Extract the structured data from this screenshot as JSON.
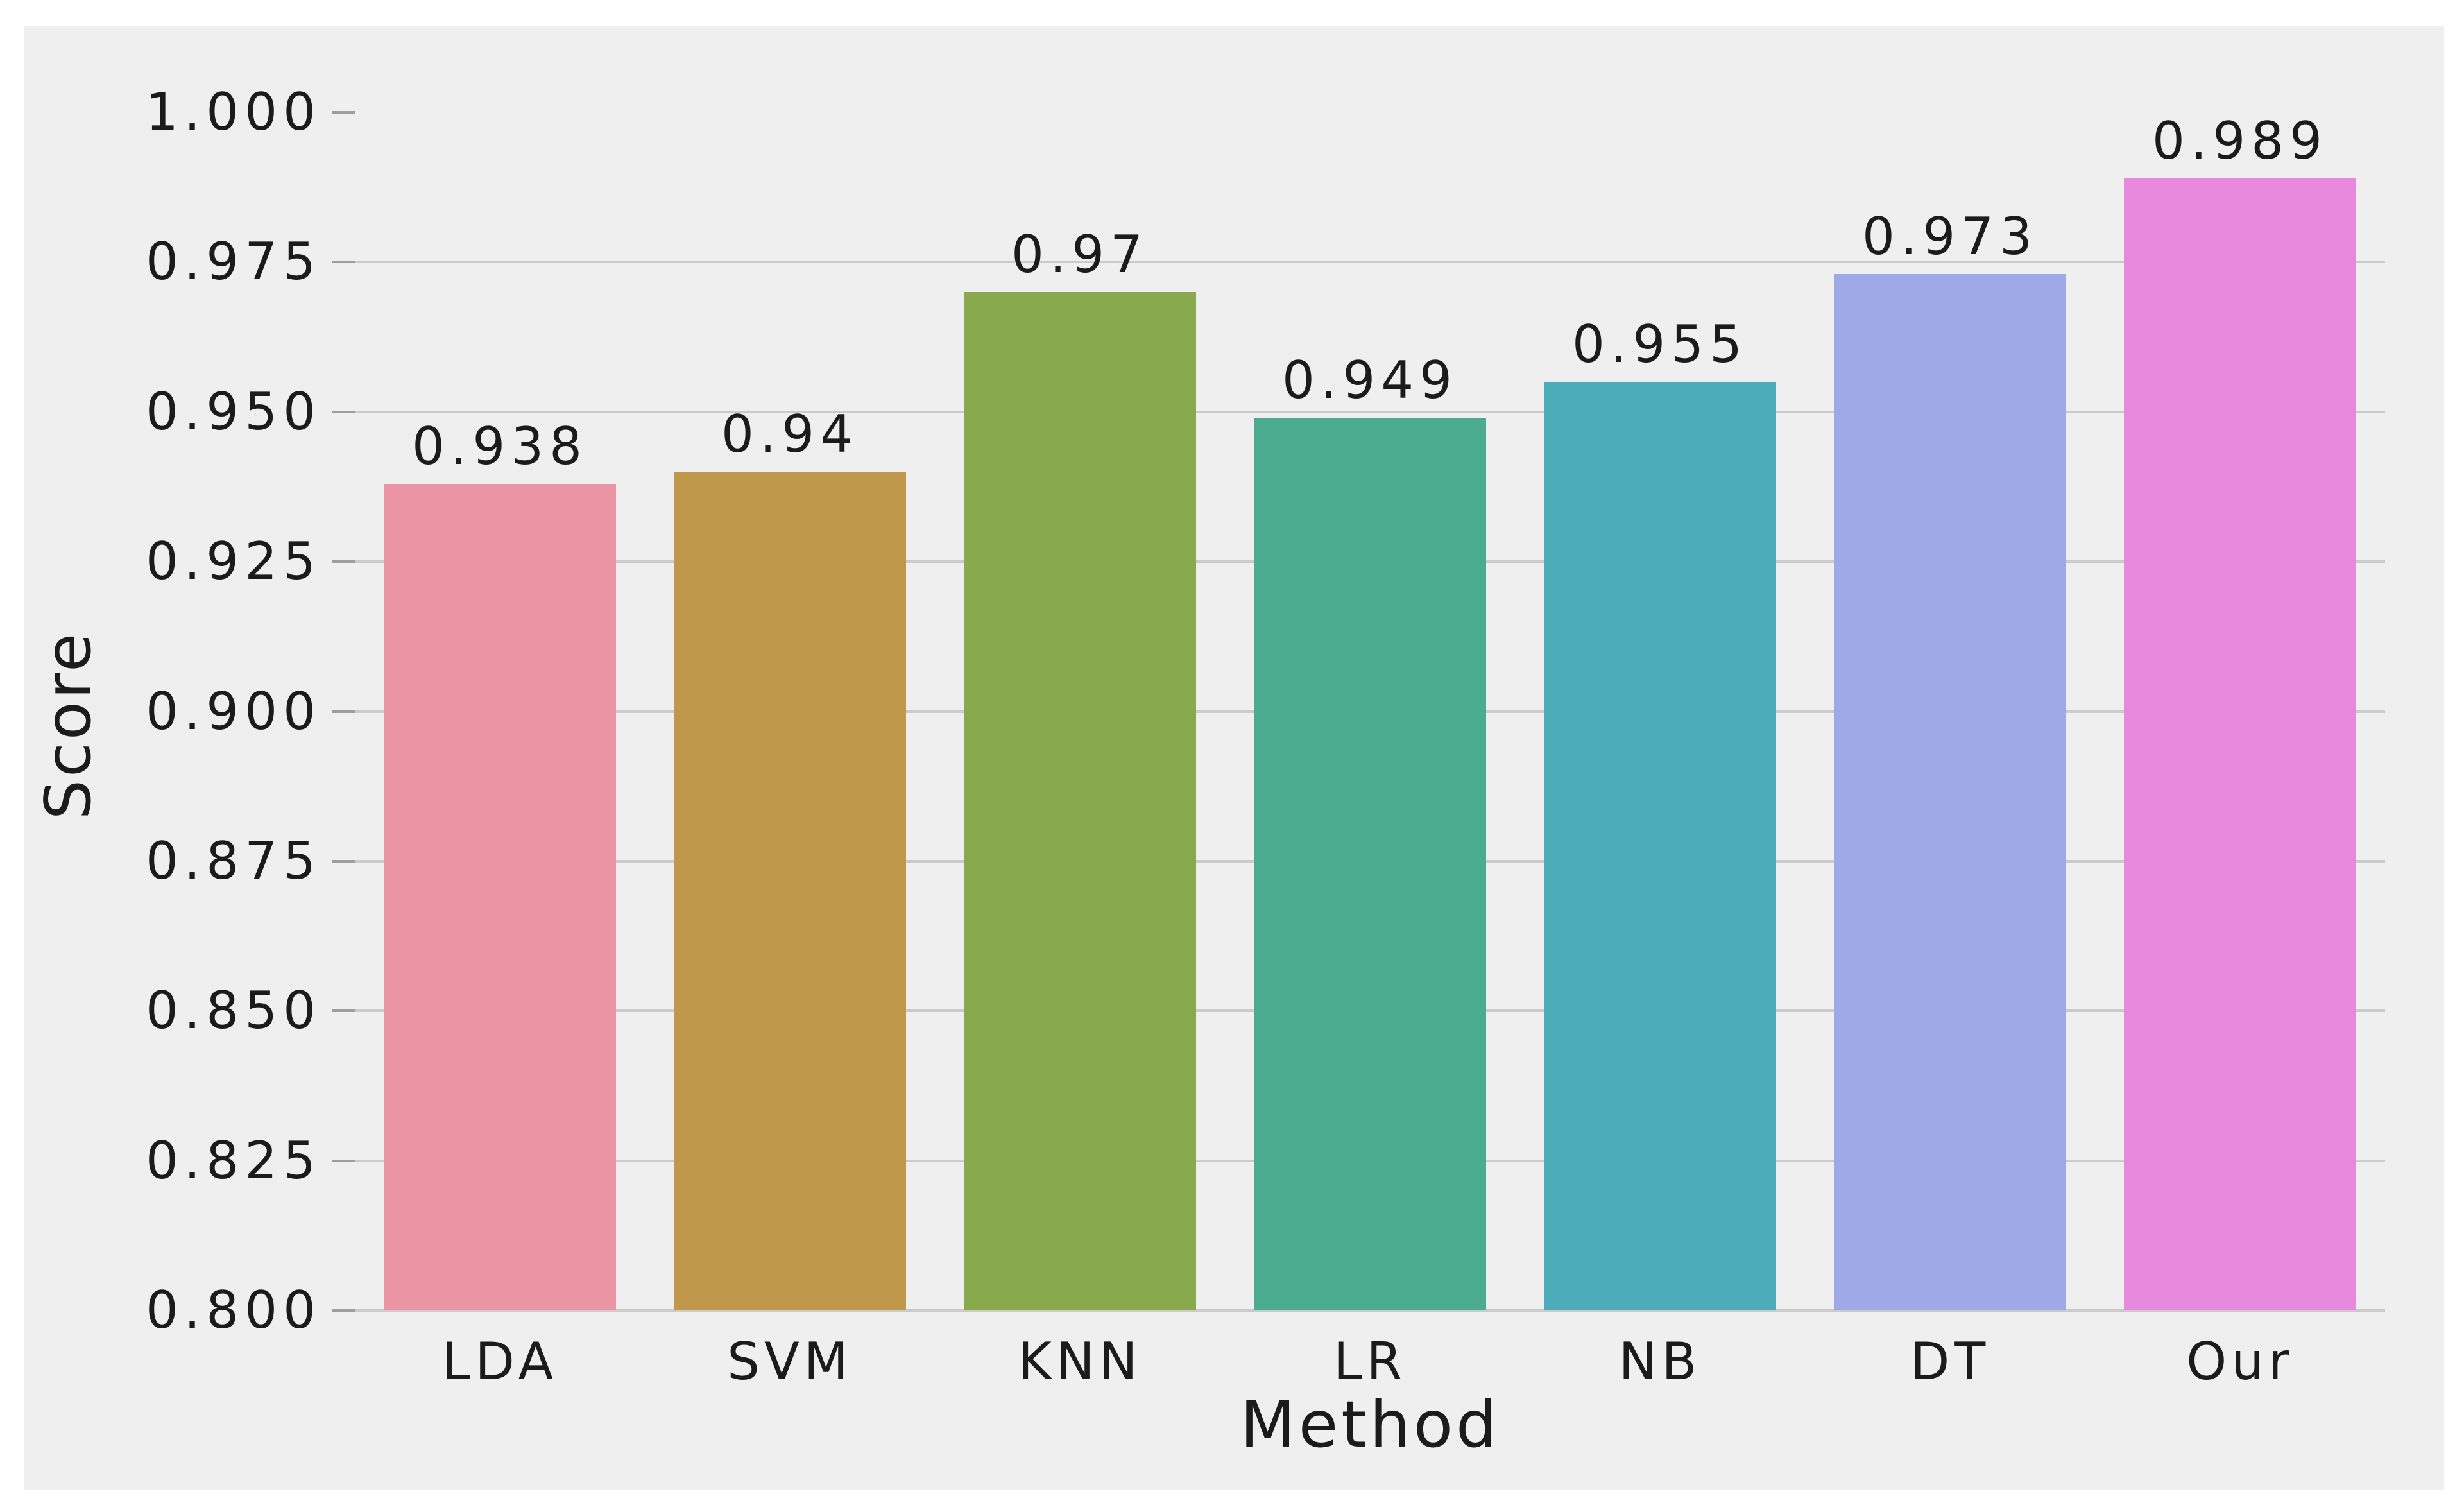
{
  "chart_data": {
    "type": "bar",
    "title": "",
    "xlabel": "Method",
    "ylabel": "Score",
    "categories": [
      "LDA",
      "SVM",
      "KNN",
      "LR",
      "NB",
      "DT",
      "Our"
    ],
    "values": [
      0.938,
      0.94,
      0.97,
      0.949,
      0.955,
      0.973,
      0.989
    ],
    "value_labels": [
      "0.938",
      "0.94",
      "0.97",
      "0.949",
      "0.955",
      "0.973",
      "0.989"
    ],
    "bar_colors": [
      "#ea94a4",
      "#c0984c",
      "#88a94c",
      "#4cac90",
      "#4dacba",
      "#a0a9e7",
      "#e78ade"
    ],
    "ylim": [
      0.8,
      1.0
    ],
    "yticks": [
      1.0,
      0.975,
      0.95,
      0.925,
      0.9,
      0.875,
      0.85,
      0.825,
      0.8
    ],
    "ytick_labels": [
      "1.000",
      "0.975",
      "0.950",
      "0.925",
      "0.900",
      "0.875",
      "0.850",
      "0.825",
      "0.800"
    ],
    "grid": true,
    "legend_position": "none",
    "bar_width_fraction": 0.8,
    "colors": {
      "page_bg": "#ffffff",
      "figure_bg": "#efefef",
      "grid": "#cbcbcb",
      "tick": "#9e9e9e",
      "text": "#1b1b1b"
    }
  }
}
